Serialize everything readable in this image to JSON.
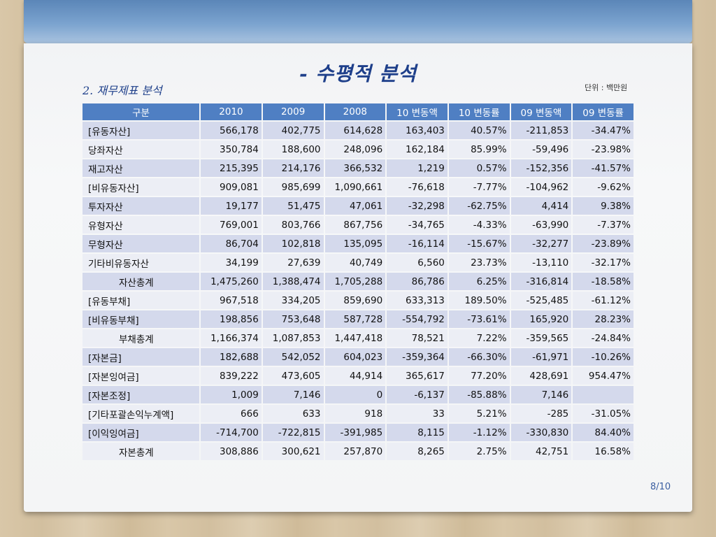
{
  "title": "- 수평적 분석",
  "subtitle": "2. 재무제표 분석",
  "unit": "단위 : 백만원",
  "page_number": "8/10",
  "table": {
    "headers": [
      "구분",
      "2010",
      "2009",
      "2008",
      "10 변동액",
      "10 변동률",
      "09 변동액",
      "09 변동률"
    ],
    "rows": [
      {
        "label": "[유동자산]",
        "total": false,
        "cells": [
          "566,178",
          "402,775",
          "614,628",
          "163,403",
          "40.57%",
          "-211,853",
          "-34.47%"
        ]
      },
      {
        "label": "당좌자산",
        "total": false,
        "cells": [
          "350,784",
          "188,600",
          "248,096",
          "162,184",
          "85.99%",
          "-59,496",
          "-23.98%"
        ]
      },
      {
        "label": "재고자산",
        "total": false,
        "cells": [
          "215,395",
          "214,176",
          "366,532",
          "1,219",
          "0.57%",
          "-152,356",
          "-41.57%"
        ]
      },
      {
        "label": "[비유동자산]",
        "total": false,
        "cells": [
          "909,081",
          "985,699",
          "1,090,661",
          "-76,618",
          "-7.77%",
          "-104,962",
          "-9.62%"
        ]
      },
      {
        "label": "투자자산",
        "total": false,
        "cells": [
          "19,177",
          "51,475",
          "47,061",
          "-32,298",
          "-62.75%",
          "4,414",
          "9.38%"
        ]
      },
      {
        "label": "유형자산",
        "total": false,
        "cells": [
          "769,001",
          "803,766",
          "867,756",
          "-34,765",
          "-4.33%",
          "-63,990",
          "-7.37%"
        ]
      },
      {
        "label": "무형자산",
        "total": false,
        "cells": [
          "86,704",
          "102,818",
          "135,095",
          "-16,114",
          "-15.67%",
          "-32,277",
          "-23.89%"
        ]
      },
      {
        "label": "기타비유동자산",
        "total": false,
        "cells": [
          "34,199",
          "27,639",
          "40,749",
          "6,560",
          "23.73%",
          "-13,110",
          "-32.17%"
        ]
      },
      {
        "label": "자산총계",
        "total": true,
        "cells": [
          "1,475,260",
          "1,388,474",
          "1,705,288",
          "86,786",
          "6.25%",
          "-316,814",
          "-18.58%"
        ]
      },
      {
        "label": "[유동부채]",
        "total": false,
        "cells": [
          "967,518",
          "334,205",
          "859,690",
          "633,313",
          "189.50%",
          "-525,485",
          "-61.12%"
        ]
      },
      {
        "label": "[비유동부채]",
        "total": false,
        "cells": [
          "198,856",
          "753,648",
          "587,728",
          "-554,792",
          "-73.61%",
          "165,920",
          "28.23%"
        ]
      },
      {
        "label": "부채총계",
        "total": true,
        "cells": [
          "1,166,374",
          "1,087,853",
          "1,447,418",
          "78,521",
          "7.22%",
          "-359,565",
          "-24.84%"
        ]
      },
      {
        "label": "[자본금]",
        "total": false,
        "cells": [
          "182,688",
          "542,052",
          "604,023",
          "-359,364",
          "-66.30%",
          "-61,971",
          "-10.26%"
        ]
      },
      {
        "label": "[자본잉여금]",
        "total": false,
        "cells": [
          "839,222",
          "473,605",
          "44,914",
          "365,617",
          "77.20%",
          "428,691",
          "954.47%"
        ]
      },
      {
        "label": "[자본조정]",
        "total": false,
        "cells": [
          "1,009",
          "7,146",
          "0",
          "-6,137",
          "-85.88%",
          "7,146",
          ""
        ]
      },
      {
        "label": "[기타포괄손익누계액]",
        "total": false,
        "cells": [
          "666",
          "633",
          "918",
          "33",
          "5.21%",
          "-285",
          "-31.05%"
        ]
      },
      {
        "label": "[이익잉여금]",
        "total": false,
        "cells": [
          "-714,700",
          "-722,815",
          "-391,985",
          "8,115",
          "-1.12%",
          "-330,830",
          "84.40%"
        ]
      },
      {
        "label": "자본총계",
        "total": true,
        "cells": [
          "308,886",
          "300,621",
          "257,870",
          "8,265",
          "2.75%",
          "42,751",
          "16.58%"
        ]
      }
    ]
  }
}
